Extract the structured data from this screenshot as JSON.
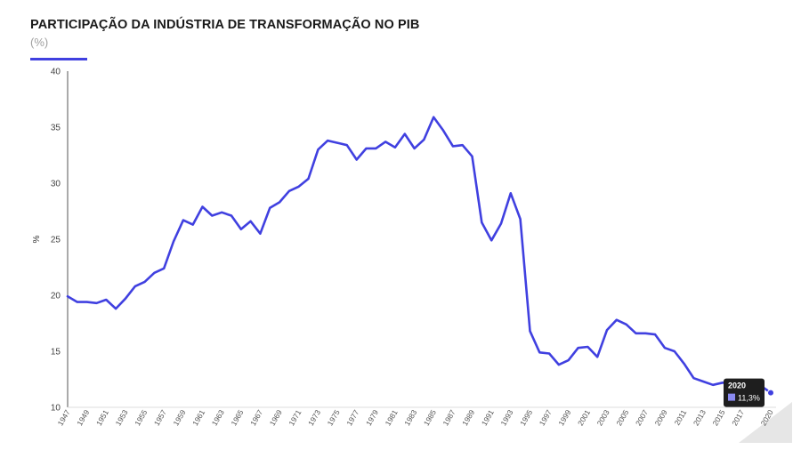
{
  "header": {
    "title": "PARTICIPAÇÃO DA INDÚSTRIA DE TRANSFORMAÇÃO NO PIB",
    "subtitle": "(%)"
  },
  "colors": {
    "line": "#4040e0",
    "tooltip_bg": "#1e1e1e"
  },
  "tooltip": {
    "year": "2020",
    "value": "11,3%"
  },
  "chart_data": {
    "type": "line",
    "title": "PARTICIPAÇÃO DA INDÚSTRIA DE TRANSFORMAÇÃO NO PIB",
    "subtitle": "(%)",
    "xlabel": "",
    "ylabel": "%",
    "ylim": [
      10,
      40
    ],
    "yticks": [
      10,
      15,
      20,
      25,
      30,
      35,
      40
    ],
    "xtick_labels": [
      "1947",
      "1949",
      "1951",
      "1953",
      "1955",
      "1957",
      "1959",
      "1961",
      "1963",
      "1965",
      "1967",
      "1969",
      "1971",
      "1973",
      "1975",
      "1977",
      "1979",
      "1981",
      "1983",
      "1985",
      "1987",
      "1989",
      "1991",
      "1993",
      "1995",
      "1997",
      "1999",
      "2001",
      "2003",
      "2005",
      "2007",
      "2009",
      "2011",
      "2013",
      "2015",
      "2017",
      "2020"
    ],
    "grid": false,
    "series": [
      {
        "x": [
          1947,
          1948,
          1949,
          1950,
          1951,
          1952,
          1953,
          1954,
          1955,
          1956,
          1957,
          1958,
          1959,
          1960,
          1961,
          1962,
          1963,
          1964,
          1965,
          1966,
          1967,
          1968,
          1969,
          1970,
          1971,
          1972,
          1973,
          1974,
          1975,
          1976,
          1977,
          1978,
          1979,
          1980,
          1981,
          1982,
          1983,
          1984,
          1985,
          1986,
          1987,
          1988,
          1989,
          1990,
          1991,
          1992,
          1993,
          1994,
          1995,
          1996,
          1997,
          1998,
          1999,
          2000,
          2001,
          2002,
          2003,
          2004,
          2005,
          2006,
          2007,
          2008,
          2009,
          2010,
          2011,
          2012,
          2013,
          2014,
          2015,
          2016,
          2017,
          2018,
          2019,
          2020
        ],
        "values": [
          19.9,
          19.4,
          19.4,
          19.3,
          19.6,
          18.8,
          19.7,
          20.8,
          21.2,
          22.0,
          22.4,
          24.8,
          26.7,
          26.3,
          27.9,
          27.1,
          27.4,
          27.1,
          25.9,
          26.6,
          25.5,
          27.8,
          28.3,
          29.3,
          29.7,
          30.4,
          33.0,
          33.8,
          33.6,
          33.4,
          32.1,
          33.1,
          33.1,
          33.7,
          33.2,
          34.4,
          33.1,
          33.9,
          35.9,
          34.7,
          33.3,
          33.4,
          32.4,
          26.5,
          24.9,
          26.4,
          29.1,
          26.8,
          16.8,
          14.9,
          14.8,
          13.8,
          14.2,
          15.3,
          15.4,
          14.5,
          16.9,
          17.8,
          17.4,
          16.6,
          16.6,
          16.5,
          15.3,
          15.0,
          13.9,
          12.6,
          12.3,
          12.0,
          12.2,
          12.1,
          12.2,
          12.3,
          11.9,
          11.3
        ]
      }
    ]
  }
}
